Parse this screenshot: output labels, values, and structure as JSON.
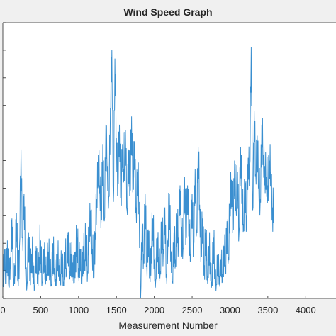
{
  "chart_data": {
    "type": "line",
    "title": "Wind Speed Graph",
    "xlabel": "Measurement Number",
    "ylabel": "",
    "xlim": [
      0,
      4400
    ],
    "ylim": [
      0,
      10
    ],
    "x_ticks": [
      0,
      500,
      1000,
      1500,
      2000,
      2500,
      3000,
      3500,
      4000
    ],
    "x_tick_labels": [
      "0",
      "500",
      "1000",
      "1500",
      "2000",
      "2500",
      "3000",
      "3500",
      "4000"
    ],
    "grid": false,
    "line_color": "#3a8fd0",
    "series": [
      {
        "sample_every": 20,
        "values": [
          0.5,
          1.8,
          0.6,
          2.1,
          0.4,
          1.5,
          2.9,
          0.7,
          1.2,
          3.1,
          0.6,
          1.9,
          5.4,
          2.2,
          3.8,
          1.1,
          0.5,
          2.4,
          0.9,
          1.6,
          1.3,
          0.4,
          1.9,
          0.8,
          1.5,
          2.1,
          0.6,
          1.8,
          1.2,
          0.9,
          1.7,
          1.4,
          0.5,
          2.0,
          1.1,
          0.7,
          1.6,
          1.2,
          0.9,
          1.5,
          0.6,
          1.8,
          1.1,
          2.4,
          1.0,
          1.6,
          1.3,
          0.8,
          1.7,
          2.2,
          1.1,
          1.8,
          0.6,
          1.9,
          1.4,
          2.3,
          1.0,
          2.6,
          3.2,
          1.8,
          1.2,
          2.4,
          3.6,
          5.2,
          4.1,
          3.0,
          5.6,
          2.8,
          6.3,
          4.8,
          3.7,
          6.9,
          9.0,
          3.5,
          8.7,
          5.8,
          4.2,
          6.3,
          3.8,
          5.6,
          4.7,
          6.1,
          3.2,
          5.4,
          3.9,
          6.6,
          4.1,
          5.7,
          3.3,
          4.6,
          3.5,
          0.0,
          2.7,
          1.6,
          3.8,
          1.2,
          2.5,
          0.8,
          1.9,
          2.9,
          1.4,
          0.7,
          2.2,
          1.5,
          1.0,
          2.8,
          1.8,
          3.3,
          0.9,
          2.1,
          3.8,
          1.7,
          0.6,
          2.4,
          1.4,
          3.0,
          2.2,
          4.1,
          2.6,
          1.8,
          4.4,
          2.3,
          4.1,
          2.7,
          1.6,
          3.8,
          1.9,
          4.7,
          2.5,
          5.5,
          3.4,
          1.8,
          2.9,
          1.2,
          2.4,
          0.8,
          1.9,
          1.3,
          0.6,
          2.2,
          1.0,
          0.5,
          1.6,
          0.8,
          1.4,
          0.9,
          1.9,
          1.2,
          2.8,
          1.5,
          3.6,
          4.3,
          2.6,
          5.0,
          3.3,
          4.6,
          2.4,
          5.5,
          3.8,
          2.7,
          4.2,
          3.0,
          5.1,
          4.8,
          9.1,
          3.2,
          6.8,
          4.5,
          5.9,
          4.1,
          3.6,
          6.3,
          5.2,
          4.8,
          4.4,
          4.1,
          5.0,
          4.6,
          3.3
        ]
      }
    ]
  },
  "figure": {
    "background": "#f0f0f0",
    "axes_background": "#ffffff",
    "axis_color": "#262626"
  }
}
